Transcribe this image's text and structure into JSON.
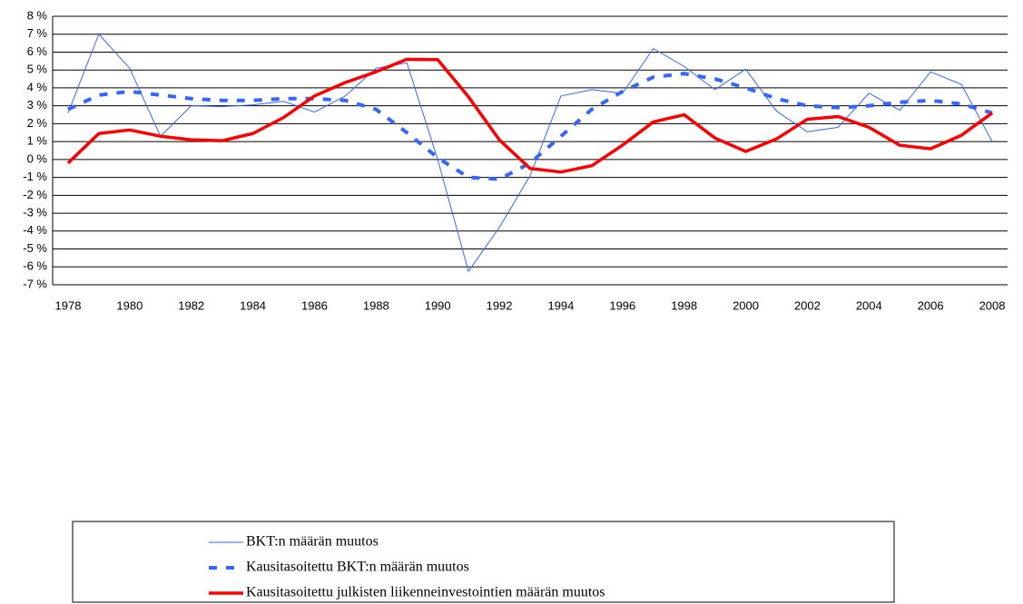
{
  "chart_data": {
    "type": "line",
    "x": [
      1978,
      1979,
      1980,
      1981,
      1982,
      1983,
      1984,
      1985,
      1986,
      1987,
      1988,
      1989,
      1990,
      1991,
      1992,
      1993,
      1994,
      1995,
      1996,
      1997,
      1998,
      1999,
      2000,
      2001,
      2002,
      2003,
      2004,
      2005,
      2006,
      2007,
      2008
    ],
    "series": [
      {
        "name": "BKT:n määrän muutos",
        "color": "#3366ff",
        "style": "thin",
        "values": [
          2.6,
          7.0,
          5.1,
          1.3,
          3.0,
          2.95,
          3.05,
          3.25,
          2.65,
          3.55,
          5.1,
          5.4,
          0.0,
          -6.25,
          -3.8,
          -0.9,
          3.55,
          3.9,
          3.7,
          6.2,
          5.2,
          3.9,
          5.05,
          2.7,
          1.55,
          1.8,
          3.7,
          2.75,
          4.9,
          4.2,
          1.0
        ]
      },
      {
        "name": "Kausitasoitettu BKT:n määrän muutos",
        "color": "#3366ff",
        "style": "dashed",
        "values": [
          2.8,
          3.6,
          3.8,
          3.6,
          3.4,
          3.3,
          3.3,
          3.4,
          3.4,
          3.3,
          2.8,
          1.5,
          0.1,
          -1.0,
          -1.1,
          -0.2,
          1.3,
          2.8,
          3.8,
          4.6,
          4.8,
          4.5,
          4.0,
          3.4,
          3.0,
          2.9,
          3.0,
          3.2,
          3.3,
          3.1,
          2.6
        ]
      },
      {
        "name": "Kausitasoitettu julkisten liikenneinvestointien määrän muutos",
        "color": "#ff0000",
        "style": "thick",
        "values": [
          -0.2,
          1.45,
          1.65,
          1.3,
          1.1,
          1.05,
          1.45,
          2.35,
          3.55,
          4.3,
          4.9,
          5.6,
          5.58,
          3.5,
          1.1,
          -0.5,
          -0.7,
          -0.35,
          0.8,
          2.1,
          2.5,
          1.2,
          0.45,
          1.15,
          2.25,
          2.4,
          1.8,
          0.8,
          0.6,
          1.35,
          2.6
        ]
      }
    ],
    "xlim": [
      1977.5,
      2008.5
    ],
    "xticks": [
      1978,
      1980,
      1982,
      1984,
      1986,
      1988,
      1990,
      1992,
      1994,
      1996,
      1998,
      2000,
      2002,
      2004,
      2006,
      2008
    ],
    "ylim": [
      -7,
      8
    ],
    "yticks": [
      {
        "value": -7,
        "label": "-7 %"
      },
      {
        "value": -6,
        "label": "-6 %"
      },
      {
        "value": -5,
        "label": "-5 %"
      },
      {
        "value": -4,
        "label": "-4 %"
      },
      {
        "value": -3,
        "label": "-3 %"
      },
      {
        "value": -2,
        "label": "-2 %"
      },
      {
        "value": -1,
        "label": "-1 %"
      },
      {
        "value": 0,
        "label": "0 %"
      },
      {
        "value": 1,
        "label": "1 %"
      },
      {
        "value": 2,
        "label": "2 %"
      },
      {
        "value": 3,
        "label": "3 %"
      },
      {
        "value": 4,
        "label": "4 %"
      },
      {
        "value": 5,
        "label": "5 %"
      },
      {
        "value": 6,
        "label": "6 %"
      },
      {
        "value": 7,
        "label": "7 %"
      },
      {
        "value": 8,
        "label": "8 %"
      }
    ],
    "grid": true
  }
}
